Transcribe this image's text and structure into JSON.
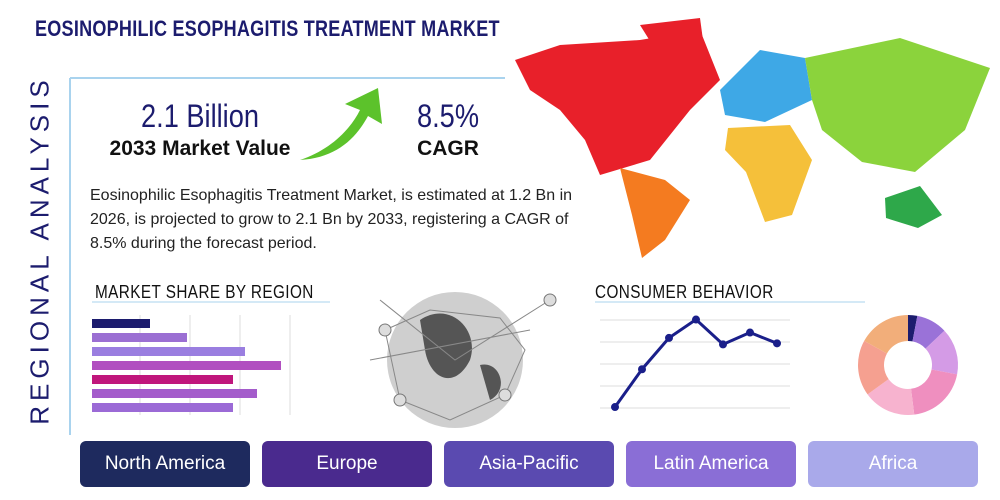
{
  "header": {
    "title": "EOSINOPHILIC ESOPHAGITIS TREATMENT MARKET",
    "side_label": "REGIONAL ANALYSIS"
  },
  "stats": [
    {
      "value": "2.1 Billion",
      "label": "2033 Market Value"
    },
    {
      "value": "8.5%",
      "label": "CAGR"
    }
  ],
  "description": "Eosinophilic Esophagitis Treatment Market, is estimated at 1.2 Bn in 2026, is projected to grow to 2.1 Bn by 2033, registering a CAGR of 8.5% during the forecast period.",
  "market_share": {
    "type": "bar",
    "title": "MARKET SHARE BY REGION",
    "values": [
      58,
      95,
      153,
      189,
      141,
      165,
      141
    ],
    "colors": [
      "#1c1c6e",
      "#9b6fd3",
      "#9a7ee0",
      "#b14fc0",
      "#c0167c",
      "#a45ccb",
      "#9b6ad6"
    ],
    "xlim": [
      0,
      210
    ]
  },
  "consumer_behavior": {
    "type": "line",
    "title": "CONSUMER BEHAVIOR",
    "values": [
      12,
      47,
      76,
      93,
      70,
      81,
      71
    ],
    "color": "#1a1f8a",
    "ylim": [
      0,
      100
    ]
  },
  "donut": {
    "type": "pie",
    "values": [
      3,
      10,
      15,
      20,
      17,
      18,
      17
    ],
    "colors": [
      "#1c1c6e",
      "#9a72d8",
      "#d49be6",
      "#ef8fbf",
      "#f7b3cf",
      "#f5a090",
      "#f2ae7a"
    ]
  },
  "regions": [
    "North America",
    "Europe",
    "Asia-Pacific",
    "Latin America",
    "Africa"
  ]
}
